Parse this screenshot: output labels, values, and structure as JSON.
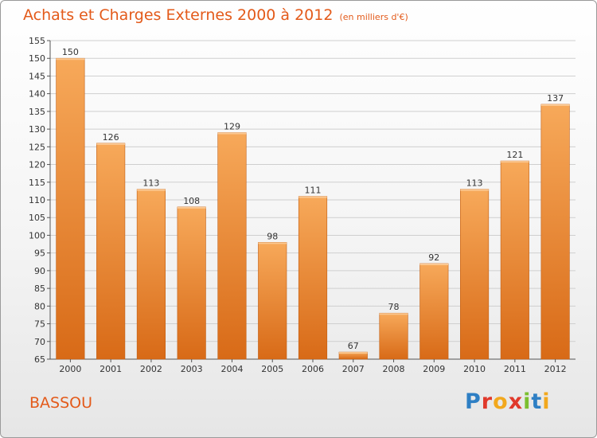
{
  "header": {
    "title": "Achats et Charges Externes 2000 à 2012",
    "subtitle": "(en milliers d'€)"
  },
  "footer": {
    "place": "BASSOU",
    "logo_text": "Proxiti",
    "logo_colors": [
      "#2e7fc4",
      "#e0392b",
      "#f2a81d",
      "#e0392b",
      "#7bbf2f",
      "#2e7fc4",
      "#f2a81d"
    ]
  },
  "colors": {
    "title": "#e35a1a",
    "bar_light": "#f7a95a",
    "bar_dark": "#d86a17",
    "grid": "#cfcfcf"
  },
  "chart_data": {
    "type": "bar",
    "title": "Achats et Charges Externes 2000 à 2012",
    "subtitle": "(en milliers d'€)",
    "categories": [
      "2000",
      "2001",
      "2002",
      "2003",
      "2004",
      "2005",
      "2006",
      "2007",
      "2008",
      "2009",
      "2010",
      "2011",
      "2012"
    ],
    "values": [
      150,
      126,
      113,
      108,
      129,
      98,
      111,
      67,
      78,
      92,
      113,
      121,
      137
    ],
    "ylim": [
      65,
      155
    ],
    "ytick_step": 5,
    "grid": true,
    "legend": "none"
  }
}
